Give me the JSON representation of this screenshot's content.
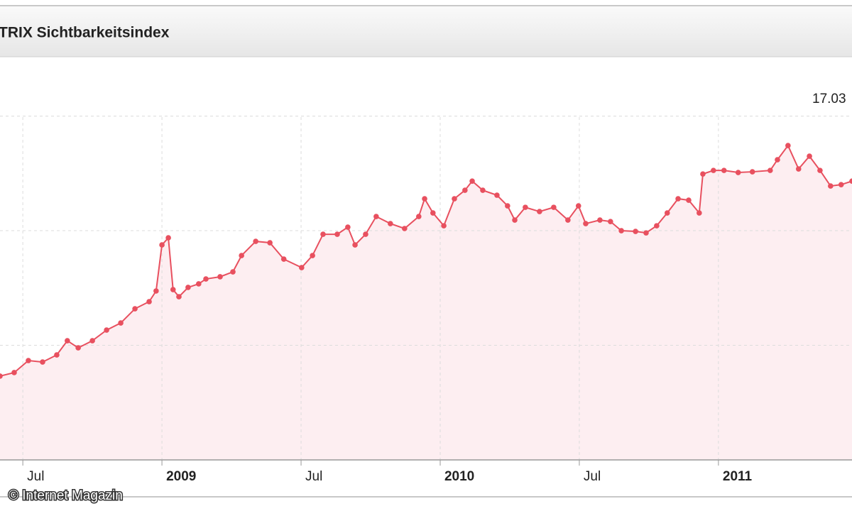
{
  "chart_data": {
    "type": "line",
    "title": "TRIX Sichtbarkeitsindex",
    "annotation": "17.03",
    "watermark": "© Internet Magazin",
    "xlim": [
      2008.418,
      2011.48
    ],
    "xticks": [
      {
        "value": 2008.5,
        "label": "Jul"
      },
      2009,
      {
        "value": 2009.5,
        "label": "Jul"
      },
      2010,
      {
        "value": 2010.5,
        "label": "Jul"
      },
      2011
    ],
    "ylim": [
      0,
      34
    ],
    "yticks": [
      10,
      20,
      30
    ],
    "grid": true,
    "series": [
      {
        "color": "#e8505f",
        "area_color": "#fdeef1",
        "x": [
          2008.418,
          2008.469,
          2008.52,
          2008.571,
          2008.622,
          2008.66,
          2008.699,
          2008.75,
          2008.801,
          2008.852,
          2008.903,
          2008.954,
          2008.979,
          2009.0,
          2009.023,
          2009.04,
          2009.061,
          2009.094,
          2009.132,
          2009.158,
          2009.209,
          2009.255,
          2009.286,
          2009.337,
          2009.388,
          2009.438,
          2009.502,
          2009.541,
          2009.579,
          2009.63,
          2009.668,
          2009.694,
          2009.732,
          2009.77,
          2009.821,
          2009.872,
          2009.923,
          2009.944,
          2009.974,
          2010.013,
          2010.051,
          2010.089,
          2010.115,
          2010.153,
          2010.204,
          2010.242,
          2010.268,
          2010.306,
          2010.357,
          2010.408,
          2010.459,
          2010.497,
          2010.523,
          2010.574,
          2010.612,
          2010.651,
          2010.702,
          2010.74,
          2010.778,
          2010.816,
          2010.855,
          2010.893,
          2010.931,
          2010.944,
          2010.982,
          2011.02,
          2011.071,
          2011.122,
          2011.186,
          2011.212,
          2011.25,
          2011.288,
          2011.327,
          2011.365,
          2011.403,
          2011.441,
          2011.48
        ],
        "values": [
          7.31,
          7.62,
          8.67,
          8.54,
          9.16,
          10.4,
          9.78,
          10.4,
          11.33,
          11.95,
          13.19,
          13.81,
          14.74,
          18.76,
          19.38,
          14.86,
          14.24,
          15.05,
          15.36,
          15.79,
          15.98,
          16.41,
          17.83,
          19.07,
          18.95,
          17.52,
          16.78,
          17.83,
          19.69,
          19.69,
          20.31,
          18.76,
          19.69,
          21.24,
          20.62,
          20.19,
          21.24,
          22.79,
          21.55,
          20.43,
          22.79,
          23.53,
          24.33,
          23.53,
          23.1,
          22.17,
          20.93,
          22.04,
          21.67,
          22.04,
          20.93,
          22.17,
          20.62,
          20.93,
          20.8,
          20.0,
          19.94,
          19.81,
          20.43,
          21.55,
          22.79,
          22.66,
          21.55,
          24.95,
          25.26,
          25.26,
          25.08,
          25.14,
          25.26,
          26.19,
          27.43,
          25.39,
          26.5,
          25.26,
          23.9,
          24.02,
          24.33
        ]
      }
    ]
  }
}
